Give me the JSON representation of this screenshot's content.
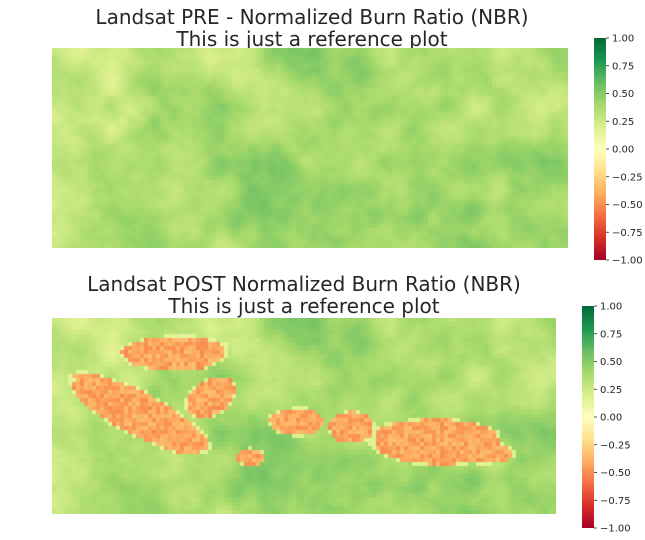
{
  "chart_data": [
    {
      "type": "heatmap",
      "title": "Landsat PRE - Normalized Burn Ratio (NBR)",
      "subtitle": "This is just a reference plot",
      "colormap": "RdYlGn",
      "vmin": -1.0,
      "vmax": 1.0,
      "colorbar_ticks": [
        "1.00",
        "0.75",
        "0.50",
        "0.25",
        "0.00",
        "−0.25",
        "−0.50",
        "−0.75",
        "−1.00"
      ],
      "colorbar_values": [
        1.0,
        0.75,
        0.5,
        0.25,
        0.0,
        -0.25,
        -0.5,
        -0.75,
        -1.0
      ],
      "grid": false,
      "value_summary": {
        "typical_range": [
          0.15,
          0.6
        ],
        "mean": 0.38
      }
    },
    {
      "type": "heatmap",
      "title": "Landsat POST Normalized Burn Ratio (NBR)",
      "subtitle": "This is just a reference plot",
      "colormap": "RdYlGn",
      "vmin": -1.0,
      "vmax": 1.0,
      "colorbar_ticks": [
        "1.00",
        "0.75",
        "0.50",
        "0.25",
        "0.00",
        "−0.25",
        "−0.50",
        "−0.75",
        "−1.00"
      ],
      "colorbar_values": [
        1.0,
        0.75,
        0.5,
        0.25,
        0.0,
        -0.25,
        -0.5,
        -0.75,
        -1.0
      ],
      "grid": false,
      "value_summary": {
        "unburned_range": [
          0.15,
          0.6
        ],
        "burned_range": [
          -0.5,
          -0.3
        ]
      }
    }
  ]
}
